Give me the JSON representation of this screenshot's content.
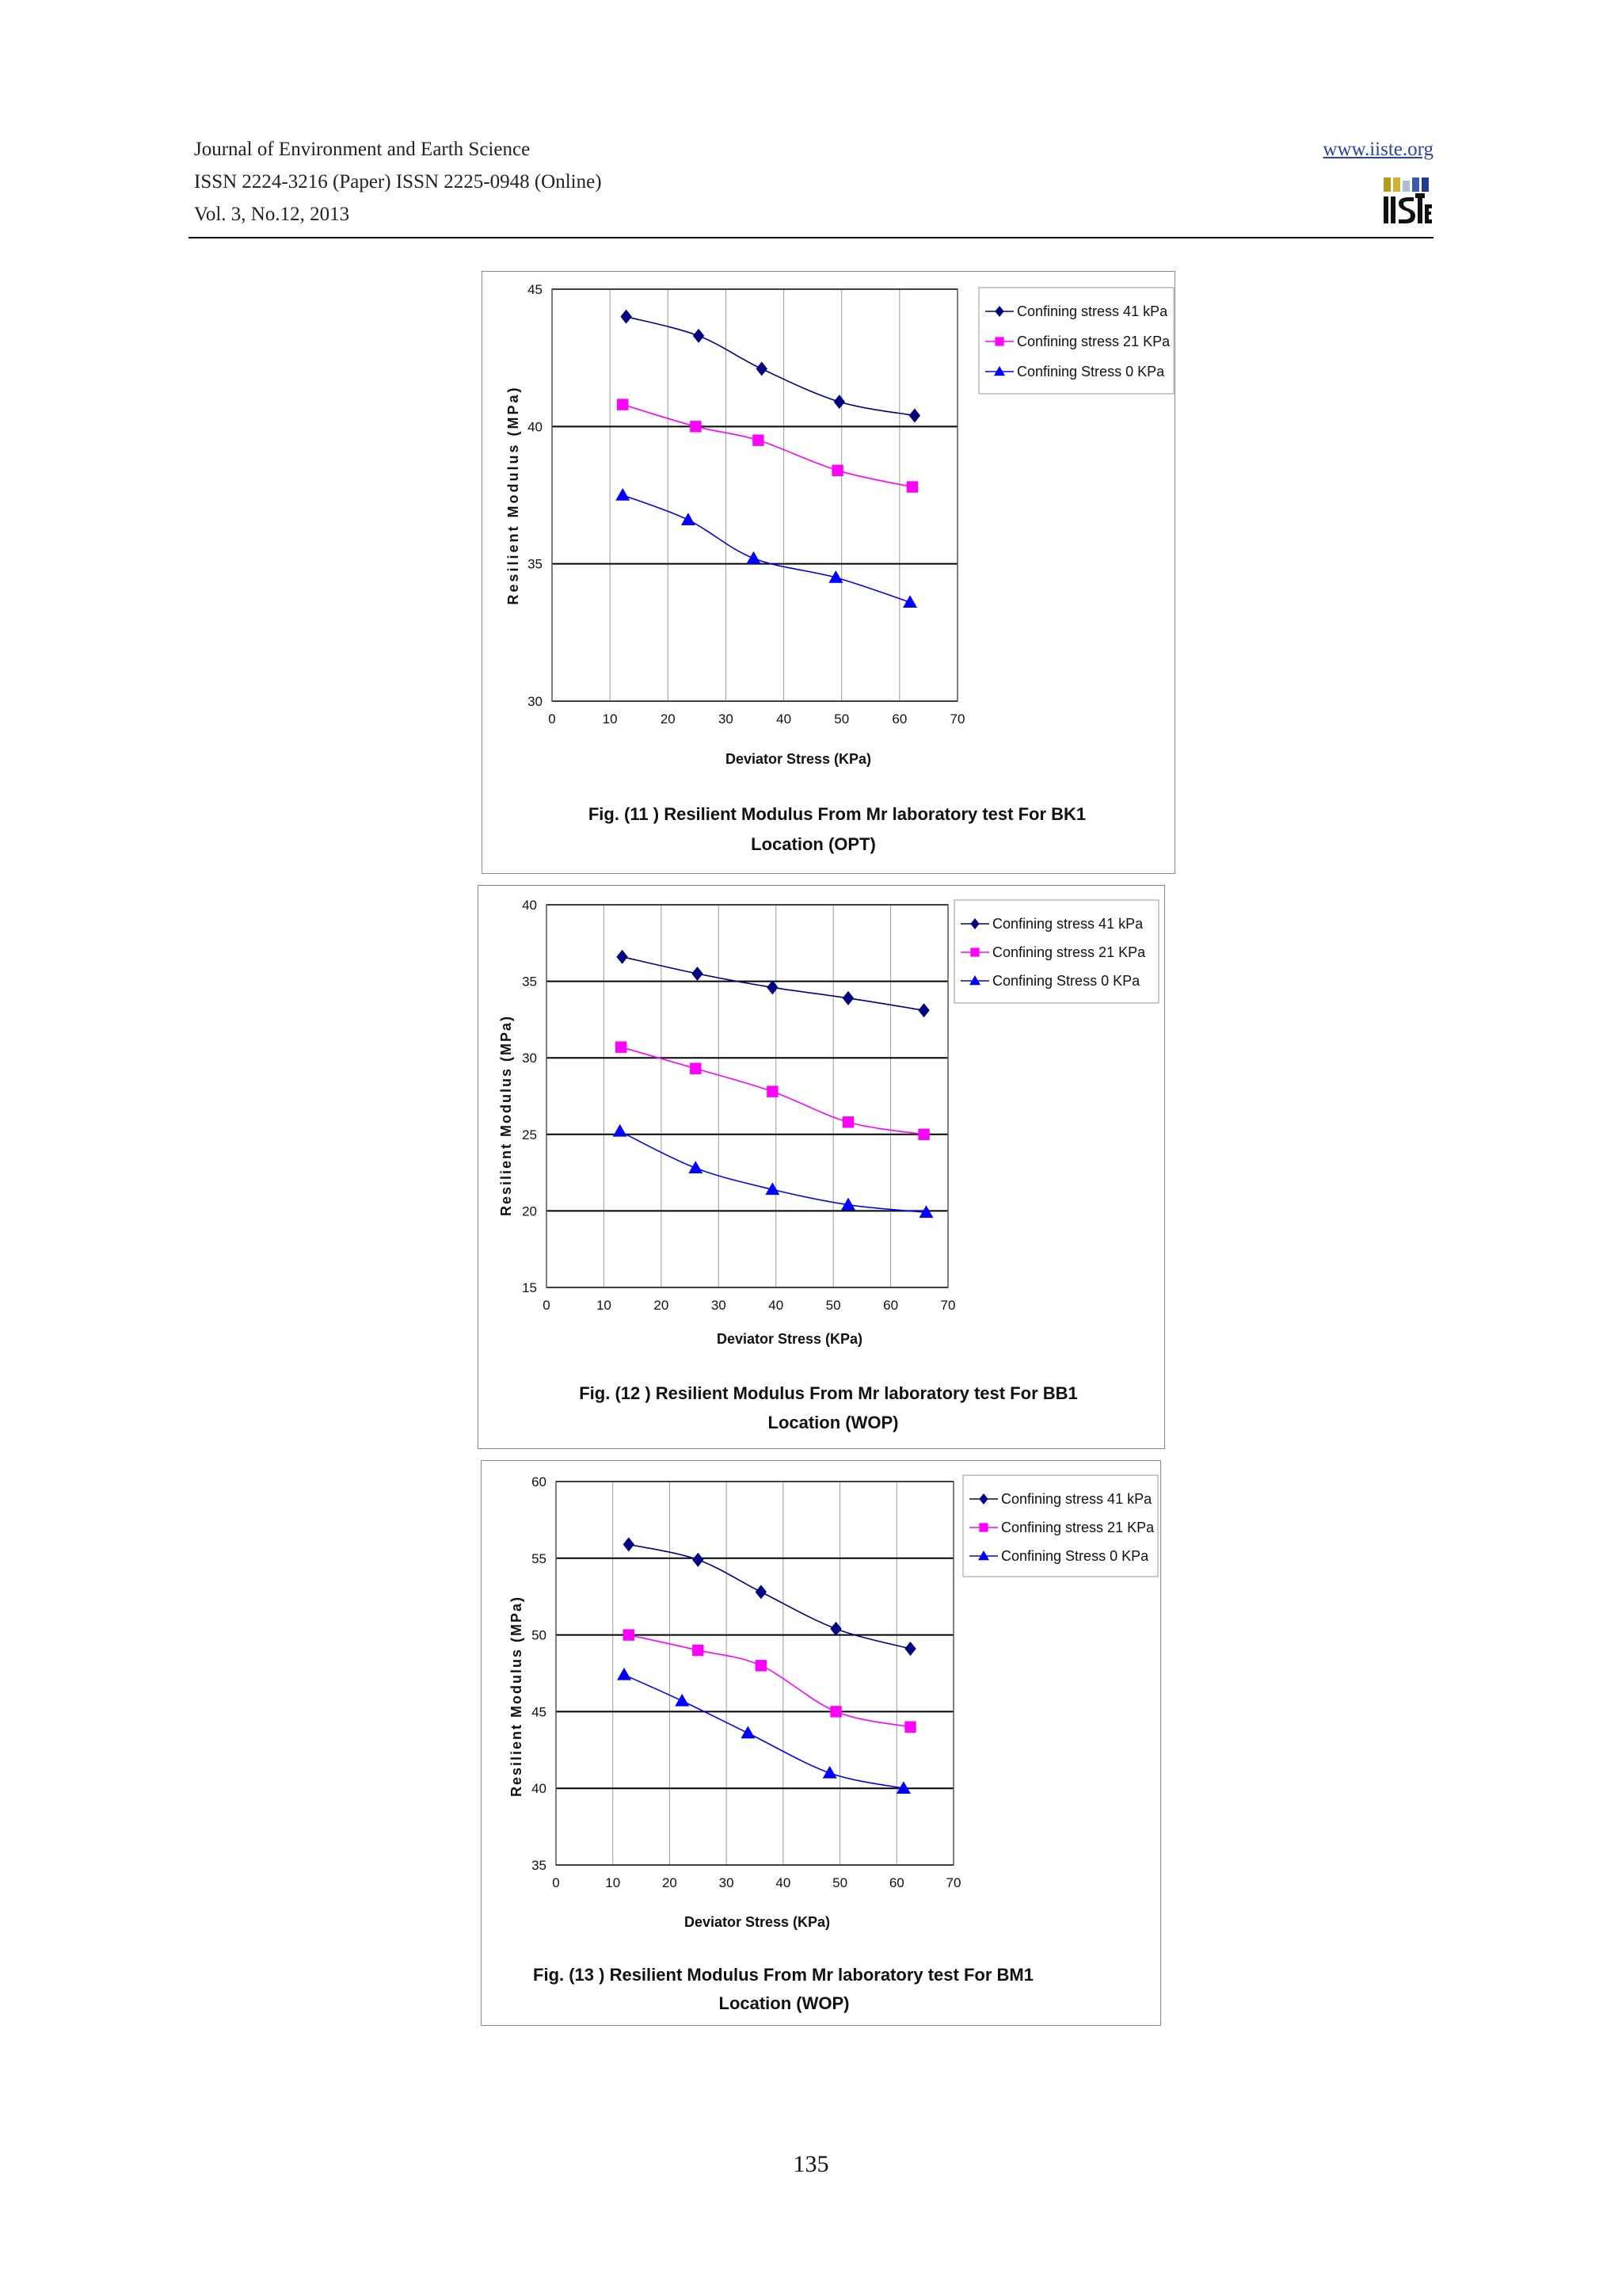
{
  "header": {
    "journal": "Journal of Environment and Earth Science",
    "issn": "ISSN 2224-3216 (Paper) ISSN 2225-0948 (Online)",
    "volume": "Vol. 3, No.12, 2013",
    "website": "www.iiste.org",
    "logo_text": "IISTE"
  },
  "page_number": "135",
  "colors": {
    "series41": "#000080",
    "series21": "#ff00ff",
    "series0": "#0000ff"
  },
  "chart_data": [
    {
      "type": "line",
      "title": "Fig. (11 )  Resilient Modulus From Mr laboratory test For  BK1",
      "subtitle": "Location (OPT)",
      "xlabel": "Deviator Stress (KPa)",
      "ylabel": "Resilient Modulus (MPa)",
      "xlim": [
        0,
        70
      ],
      "ylim": [
        30,
        45
      ],
      "xticks": [
        0,
        10,
        20,
        30,
        40,
        50,
        60,
        70
      ],
      "yticks": [
        30,
        35,
        40,
        45
      ],
      "grid": true,
      "legend": "right",
      "series": [
        {
          "name": "Confining stress 41 kPa",
          "marker": "diamond",
          "x": [
            12.8,
            25.3,
            36.2,
            49.6,
            62.6
          ],
          "y": [
            44.0,
            43.3,
            42.1,
            40.9,
            40.4
          ]
        },
        {
          "name": "Confining stress 21 KPa",
          "marker": "square",
          "x": [
            12.2,
            24.8,
            35.6,
            49.3,
            62.2
          ],
          "y": [
            40.8,
            40.0,
            39.5,
            38.4,
            37.8
          ]
        },
        {
          "name": "Confining Stress 0 KPa",
          "marker": "triangle",
          "x": [
            12.2,
            23.5,
            34.8,
            49.0,
            61.8
          ],
          "y": [
            37.5,
            36.6,
            35.2,
            34.5,
            33.6
          ]
        }
      ]
    },
    {
      "type": "line",
      "title": "Fig. (12 )  Resilient Modulus From Mr laboratory test For  BB1",
      "subtitle": "Location (WOP)",
      "xlabel": "Deviator Stress (KPa)",
      "ylabel": "Resilient Modulus (MPa)",
      "xlim": [
        0,
        70
      ],
      "ylim": [
        15,
        40
      ],
      "xticks": [
        0,
        10,
        20,
        30,
        40,
        50,
        60,
        70
      ],
      "yticks": [
        15,
        20,
        25,
        30,
        35,
        40
      ],
      "grid": true,
      "legend": "right",
      "series": [
        {
          "name": "Confining stress 41 kPa",
          "marker": "diamond",
          "x": [
            13.2,
            26.3,
            39.4,
            52.6,
            65.8
          ],
          "y": [
            36.6,
            35.5,
            34.6,
            33.9,
            33.1
          ]
        },
        {
          "name": "Confining stress 21 KPa",
          "marker": "square",
          "x": [
            13.0,
            26.0,
            39.4,
            52.6,
            65.8
          ],
          "y": [
            30.7,
            29.3,
            27.8,
            25.8,
            25.0
          ]
        },
        {
          "name": "Confining Stress 0 KPa",
          "marker": "triangle",
          "x": [
            12.8,
            26.0,
            39.4,
            52.6,
            66.2
          ],
          "y": [
            25.2,
            22.8,
            21.4,
            20.4,
            19.9
          ]
        }
      ]
    },
    {
      "type": "line",
      "title": "Fig. (13 )  Resilient Modulus From Mr laboratory test For  BM1",
      "subtitle": "Location (WOP)",
      "xlabel": "Deviator Stress (KPa)",
      "ylabel": "Resilient Modulus (MPa)",
      "xlim": [
        0,
        70
      ],
      "ylim": [
        35,
        60
      ],
      "xticks": [
        0,
        10,
        20,
        30,
        40,
        50,
        60,
        70
      ],
      "yticks": [
        35,
        40,
        45,
        50,
        55,
        60
      ],
      "grid": true,
      "legend": "right",
      "series": [
        {
          "name": "Confining stress 41 kPa",
          "marker": "diamond",
          "x": [
            12.8,
            25.0,
            36.1,
            49.3,
            62.4
          ],
          "y": [
            55.9,
            54.9,
            52.8,
            50.4,
            49.1
          ]
        },
        {
          "name": "Confining stress 21 KPa",
          "marker": "square",
          "x": [
            12.8,
            25.0,
            36.1,
            49.3,
            62.4
          ],
          "y": [
            50.0,
            49.0,
            48.0,
            45.0,
            44.0
          ]
        },
        {
          "name": "Confining Stress 0 KPa",
          "marker": "triangle",
          "x": [
            12.0,
            22.2,
            33.8,
            48.2,
            61.2
          ],
          "y": [
            47.4,
            45.7,
            43.6,
            41.0,
            40.0
          ]
        }
      ]
    }
  ]
}
